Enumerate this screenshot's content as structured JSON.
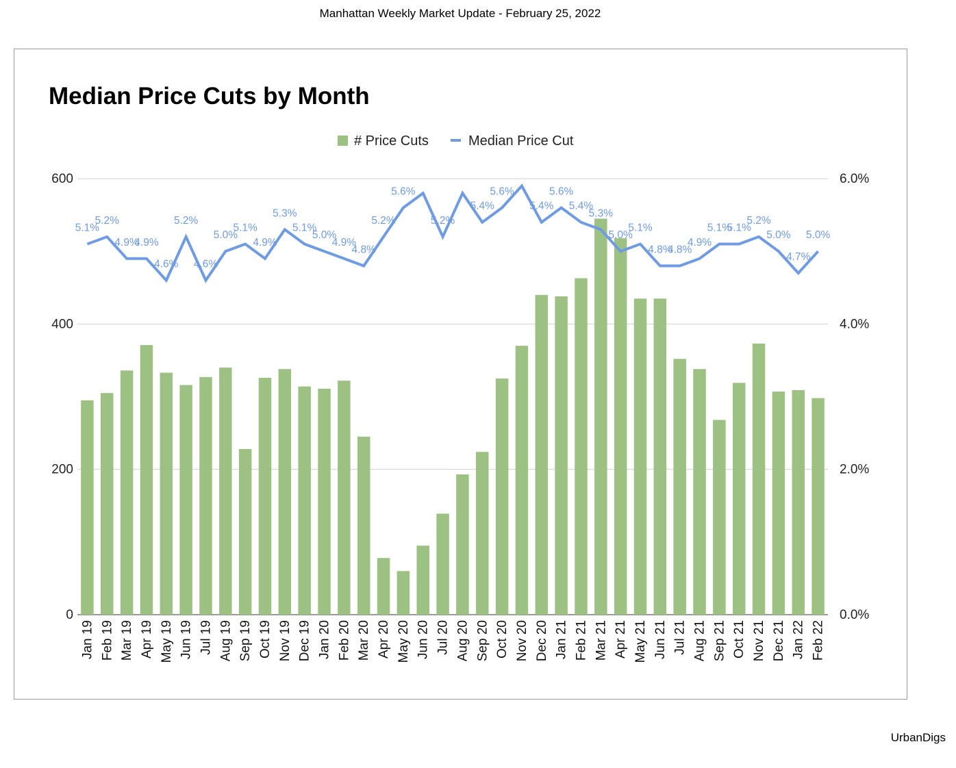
{
  "page": {
    "header": "Manhattan Weekly Market Update - February 25, 2022",
    "footer": "UrbanDigs"
  },
  "colors": {
    "bar": "#9dc183",
    "line": "#6f9be3",
    "grid": "#d0d0d0"
  },
  "chart_data": {
    "type": "bar",
    "title": "Median Price Cuts by Month",
    "xlabel": "",
    "ylabel": "",
    "y2label": "",
    "legend_position": "top-center",
    "grid": true,
    "ylim": [
      0,
      600
    ],
    "y_ticks": [
      "0",
      "200",
      "400",
      "600"
    ],
    "y2lim": [
      0,
      6.0
    ],
    "y2_ticks": [
      "0.0%",
      "2.0%",
      "4.0%",
      "6.0%"
    ],
    "categories": [
      "Jan 19",
      "Feb 19",
      "Mar 19",
      "Apr 19",
      "May 19",
      "Jun 19",
      "Jul 19",
      "Aug 19",
      "Sep 19",
      "Oct 19",
      "Nov 19",
      "Dec 19",
      "Jan 20",
      "Feb 20",
      "Mar 20",
      "Apr 20",
      "May 20",
      "Jun 20",
      "Jul 20",
      "Aug 20",
      "Sep 20",
      "Oct 20",
      "Nov 20",
      "Dec 20",
      "Jan 21",
      "Feb 21",
      "Mar 21",
      "Apr 21",
      "May 21",
      "Jun 21",
      "Jul 21",
      "Aug 21",
      "Sep 21",
      "Oct 21",
      "Nov 21",
      "Dec 21",
      "Jan 22",
      "Feb 22"
    ],
    "series": [
      {
        "name": "# Price Cuts",
        "type": "bar",
        "axis": "left",
        "values": [
          295,
          305,
          336,
          371,
          333,
          316,
          327,
          340,
          228,
          326,
          338,
          314,
          311,
          322,
          245,
          78,
          60,
          95,
          139,
          193,
          224,
          325,
          370,
          440,
          438,
          463,
          545,
          518,
          435,
          435,
          352,
          338,
          268,
          319,
          373,
          307,
          309,
          298
        ]
      },
      {
        "name": "Median Price Cut",
        "type": "line",
        "axis": "right",
        "values": [
          5.1,
          5.2,
          4.9,
          4.9,
          4.6,
          5.2,
          4.6,
          5.0,
          5.1,
          4.9,
          5.3,
          5.1,
          5.0,
          4.9,
          4.8,
          5.2,
          5.6,
          5.8,
          5.2,
          5.8,
          5.4,
          5.6,
          5.9,
          5.4,
          5.6,
          5.4,
          5.3,
          5.0,
          5.1,
          4.8,
          4.8,
          4.9,
          5.1,
          5.1,
          5.2,
          5.0,
          4.7,
          5.0
        ],
        "labels": [
          "5.1%",
          "5.2%",
          "4.9%",
          "4.9%",
          "4.6%",
          "5.2%",
          "4.6%",
          "5.0%",
          "5.1%",
          "4.9%",
          "5.3%",
          "5.1%",
          "5.0%",
          "4.9%",
          "4.8%",
          "5.2%",
          "5.6%",
          "",
          "5.2%",
          "",
          "5.4%",
          "5.6%",
          "",
          "5.4%",
          "5.6%",
          "5.4%",
          "5.3%",
          "5.0%",
          "5.1%",
          "4.8%",
          "4.8%",
          "4.9%",
          "5.1%",
          "5.1%",
          "5.2%",
          "5.0%",
          "4.7%",
          "5.0%"
        ]
      }
    ]
  }
}
